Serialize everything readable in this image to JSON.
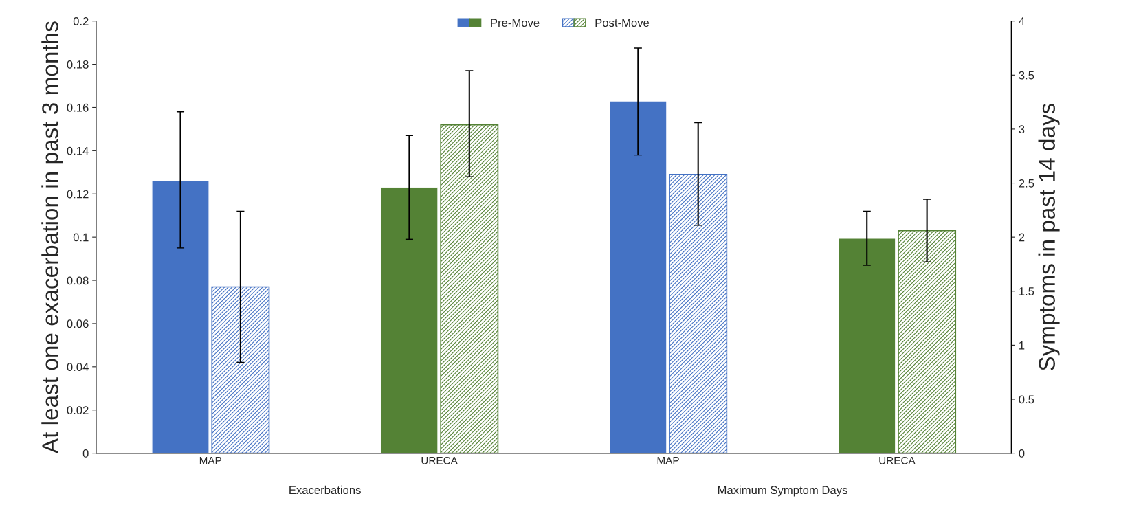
{
  "chart_data": {
    "type": "bar",
    "categories": [
      "MAP",
      "URECA",
      "MAP",
      "URECA"
    ],
    "ylabel": "At least one exacerbation in past 3 months",
    "y2label": "Symptoms in past 14 days",
    "ylim": [
      0,
      0.2
    ],
    "yticks": [
      0,
      0.02,
      0.04,
      0.06,
      0.08,
      0.1,
      0.12,
      0.14,
      0.16,
      0.18,
      0.2
    ],
    "y2lim": [
      0,
      4
    ],
    "y2ticks": [
      0,
      0.5,
      1,
      1.5,
      2,
      2.5,
      3,
      3.5,
      4
    ],
    "series": [
      {
        "name": "Pre-Move",
        "colors": [
          "#4472c4",
          "#548235",
          null,
          null
        ],
        "values": [
          0.126,
          0.123,
          null,
          null
        ],
        "errors": [
          [
            0.095,
            0.158
          ],
          [
            0.099,
            0.147
          ],
          null,
          null
        ]
      },
      {
        "name": "Post-Move",
        "colors": [
          "#4472c4",
          "#548235",
          null,
          null
        ],
        "values": [
          0.077,
          0.152,
          null,
          null
        ],
        "errors": [
          [
            0.042,
            0.112
          ],
          [
            0.128,
            0.177
          ],
          null,
          null
        ]
      },
      {
        "axis": "y2",
        "colors": [
          null,
          null,
          "#4472c4",
          "#548235"
        ],
        "values": [
          null,
          null,
          3.26,
          1.99
        ],
        "errors": [
          null,
          null,
          [
            2.76,
            3.75
          ],
          [
            1.74,
            2.24
          ]
        ]
      },
      {
        "axis": "y2",
        "colors": [
          null,
          null,
          "#4472c4",
          "#548235"
        ],
        "values": [
          null,
          null,
          2.58,
          2.06
        ],
        "errors": [
          null,
          null,
          [
            2.11,
            3.06
          ],
          [
            1.77,
            2.35
          ]
        ]
      }
    ],
    "annotations": [
      "Exacerbations",
      "Maximum Symptom Days"
    ],
    "legend": "top",
    "grid": false
  }
}
